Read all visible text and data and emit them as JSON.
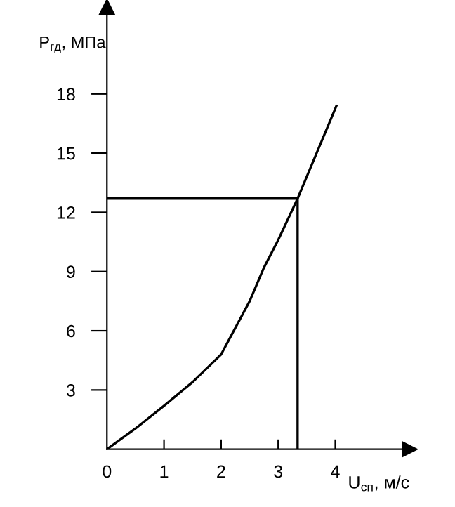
{
  "chart_data": {
    "type": "line",
    "xlabel": "U$_{сп}$, м/с",
    "ylabel": "P$_{гд}$, МПа",
    "xlim": [
      0,
      5.3
    ],
    "ylim": [
      0,
      22.4
    ],
    "xticks": [
      {
        "value": 0,
        "label": "0"
      },
      1,
      2,
      3,
      4
    ],
    "yticks": [
      3,
      6,
      9,
      12,
      15,
      18
    ],
    "grid": false,
    "legend": false,
    "marker": "none",
    "line_style": "solid",
    "series": [
      {
        "color": "#000000",
        "x": [
          0,
          0.5,
          1,
          1.5,
          2,
          2.5,
          2.75,
          3,
          3.34,
          4.02
        ],
        "values": [
          0,
          1.05,
          2.2,
          3.4,
          4.8,
          7.5,
          9.2,
          10.6,
          12.7,
          17.4
        ]
      },
      {
        "color": "#000000",
        "x": [
          0,
          3.34,
          3.34
        ],
        "values": [
          12.7,
          12.7,
          0
        ]
      }
    ]
  }
}
